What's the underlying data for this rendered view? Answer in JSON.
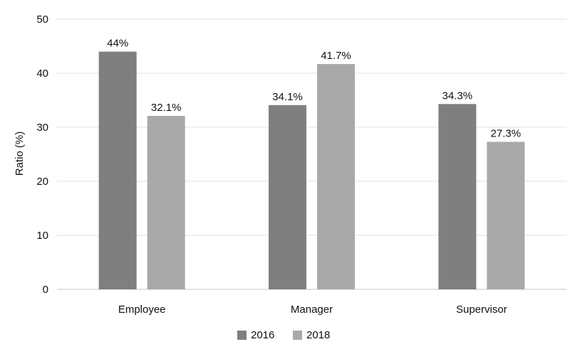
{
  "chart_data": {
    "type": "bar",
    "title": "",
    "xlabel": "",
    "ylabel": "Ratio (%)",
    "ylim": [
      0,
      50
    ],
    "yticks": [
      0,
      10,
      20,
      30,
      40,
      50
    ],
    "grid": true,
    "legend_position": "bottom",
    "categories": [
      "Employee",
      "Manager",
      "Supervisor"
    ],
    "series": [
      {
        "name": "2016",
        "color": "#7f7f7f",
        "values": [
          44,
          34.1,
          34.3
        ],
        "labels": [
          "44%",
          "34.1%",
          "34.3%"
        ]
      },
      {
        "name": "2018",
        "color": "#a9a9a9",
        "values": [
          32.1,
          41.7,
          27.3
        ],
        "labels": [
          "32.1%",
          "41.7%",
          "27.3%"
        ]
      }
    ]
  }
}
